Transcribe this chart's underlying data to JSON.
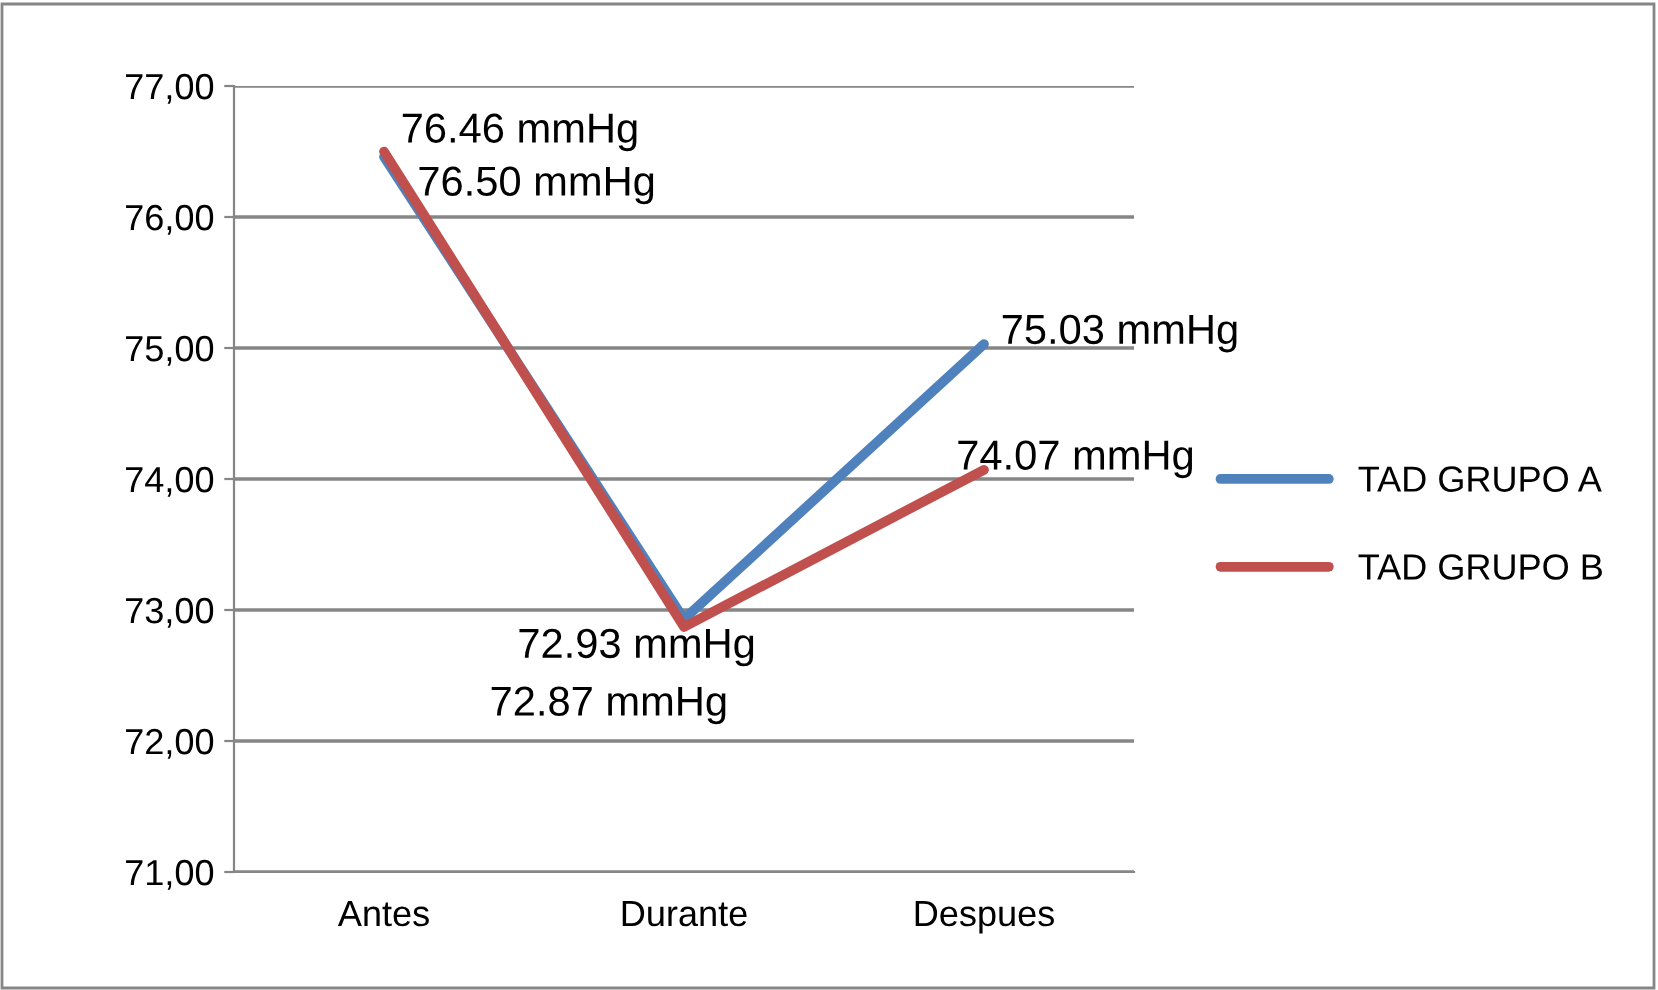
{
  "chart_data": {
    "type": "line",
    "categories": [
      "Antes",
      "Durante",
      "Despues"
    ],
    "series": [
      {
        "name": "TAD GRUPO A",
        "color": "#4f81bd",
        "values": [
          76.46,
          72.93,
          75.03
        ],
        "value_labels": [
          "76.46 mmHg",
          "72.93 mmHg",
          "75.03 mmHg"
        ]
      },
      {
        "name": "TAD GRUPO B",
        "color": "#c0504d",
        "values": [
          76.5,
          72.87,
          74.07
        ],
        "value_labels": [
          "76.50 mmHg",
          "72.87 mmHg",
          "74.07 mmHg"
        ]
      }
    ],
    "ylim": [
      71,
      77
    ],
    "yticks": [
      {
        "value": 71,
        "label": "71,00"
      },
      {
        "value": 72,
        "label": "72,00"
      },
      {
        "value": 73,
        "label": "73,00"
      },
      {
        "value": 74,
        "label": "74,00"
      },
      {
        "value": 75,
        "label": "75,00"
      },
      {
        "value": 76,
        "label": "76,00"
      },
      {
        "value": 77,
        "label": "77,00"
      }
    ],
    "grid": "y",
    "legend": "right",
    "marker": "none",
    "line_style": "solid"
  }
}
